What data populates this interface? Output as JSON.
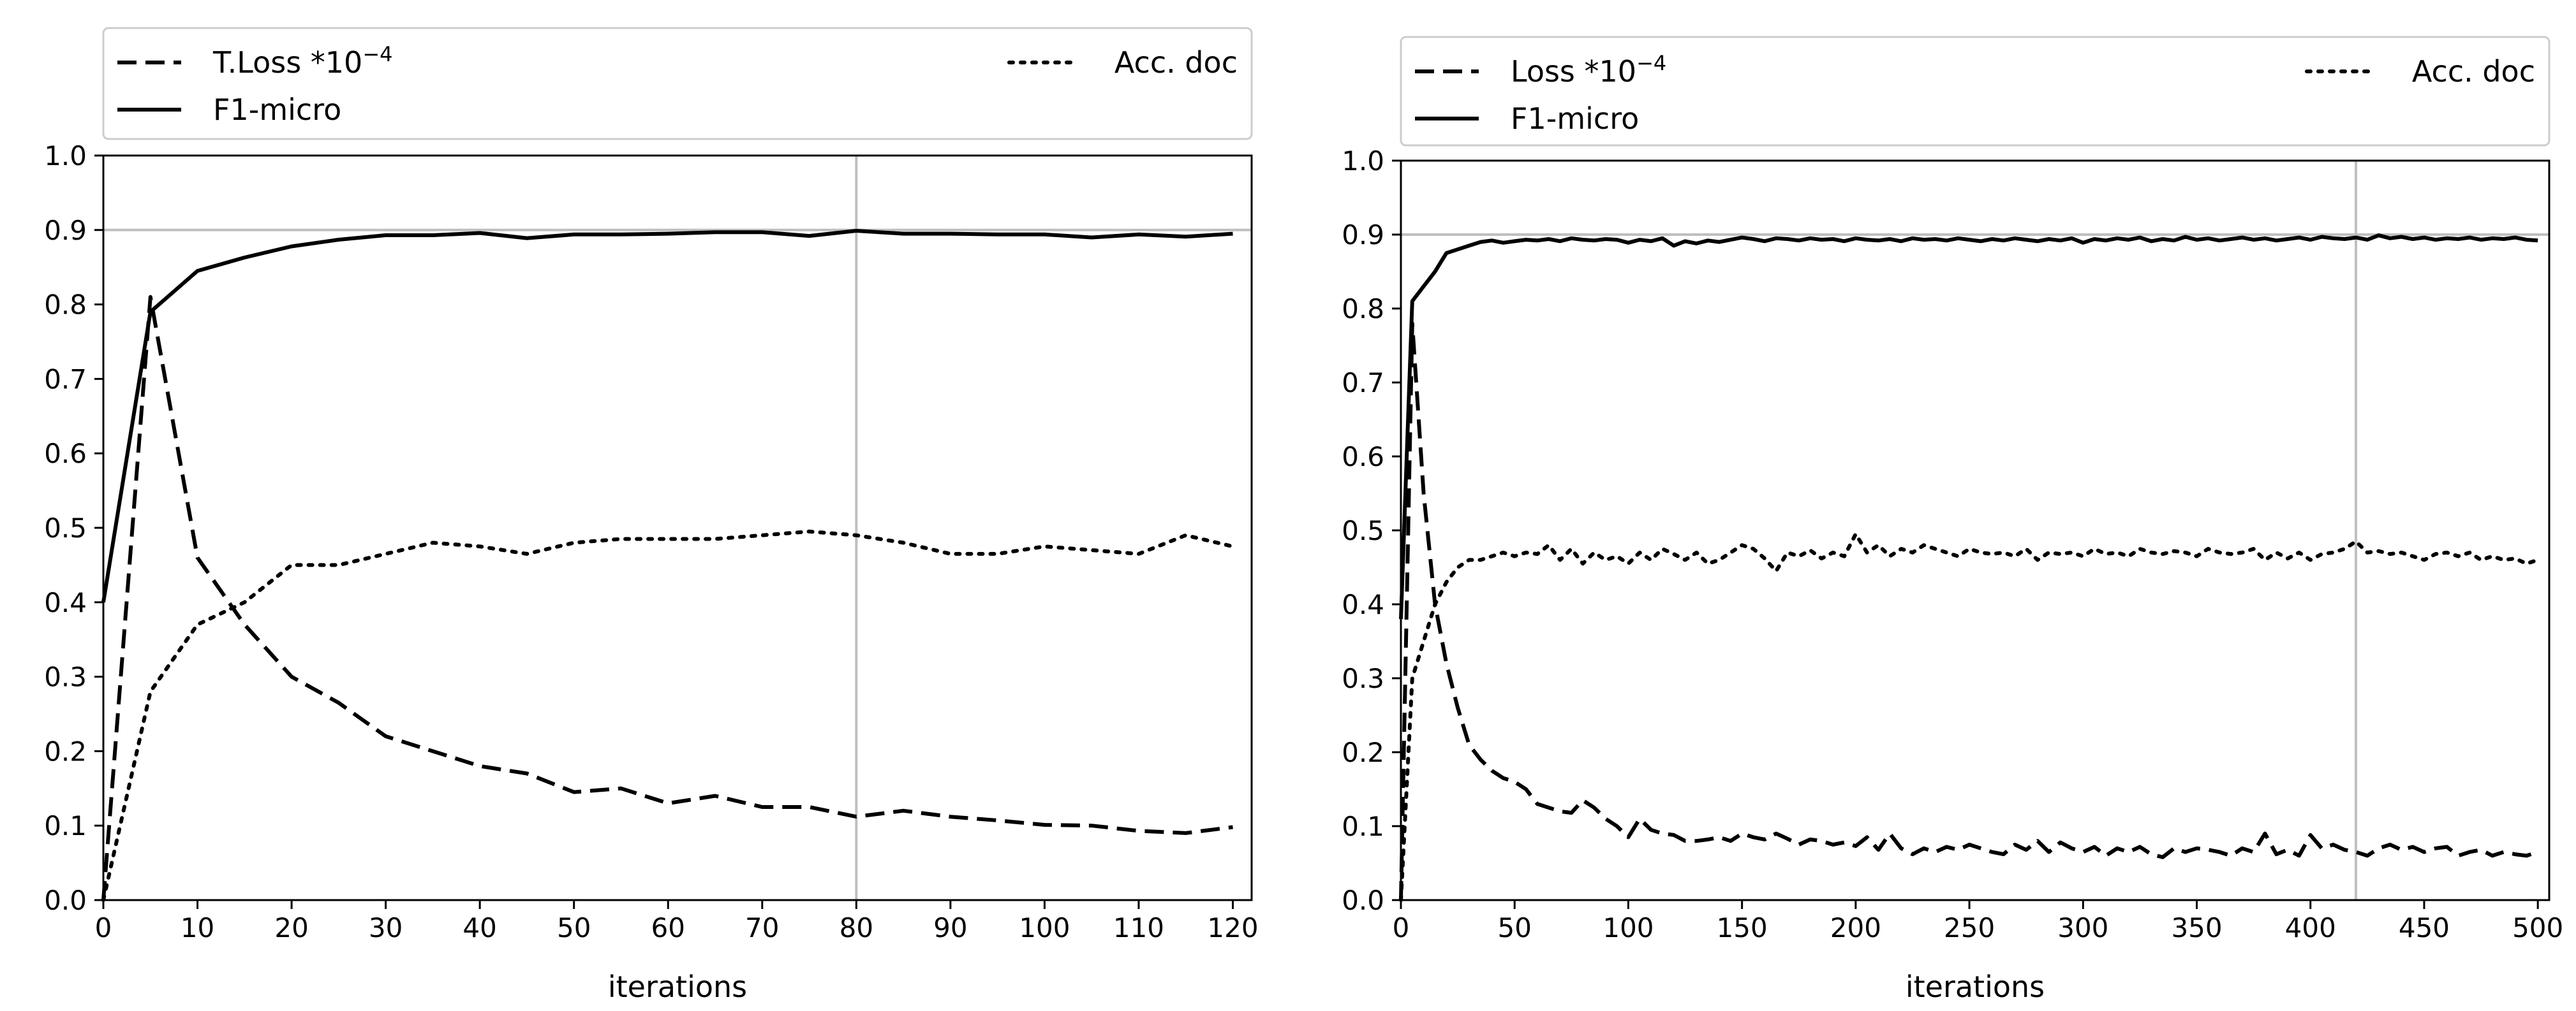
{
  "chart_data": [
    {
      "type": "line",
      "title": "",
      "xlabel": "iterations",
      "ylabel": "",
      "xlim": [
        0,
        122
      ],
      "ylim": [
        0.0,
        1.0
      ],
      "xticks": [
        0,
        10,
        20,
        30,
        40,
        50,
        60,
        70,
        80,
        90,
        100,
        110,
        120
      ],
      "xtick_labels": [
        "0",
        "10",
        "20",
        "30",
        "40",
        "50",
        "60",
        "70",
        "80",
        "90",
        "100",
        "110",
        "120"
      ],
      "yticks": [
        0.0,
        0.1,
        0.2,
        0.3,
        0.4,
        0.5,
        0.6,
        0.7,
        0.8,
        0.9,
        1.0
      ],
      "ytick_labels": [
        "0.0",
        "0.1",
        "0.2",
        "0.3",
        "0.4",
        "0.5",
        "0.6",
        "0.7",
        "0.8",
        "0.9",
        "1.0"
      ],
      "reference_lines": {
        "horizontal": 0.9,
        "vertical": 80
      },
      "legend": {
        "placement": "above",
        "entries": [
          "T.Loss *10",
          "F1-micro",
          "Acc. doc"
        ],
        "loss_exponent": "−4"
      },
      "series": [
        {
          "name": "T.Loss *10",
          "style": "dashed",
          "x": [
            0,
            5,
            10,
            15,
            20,
            25,
            30,
            35,
            40,
            45,
            50,
            55,
            60,
            65,
            70,
            75,
            80,
            85,
            90,
            95,
            100,
            105,
            110,
            115,
            120
          ],
          "y": [
            0.0,
            0.81,
            0.46,
            0.37,
            0.3,
            0.265,
            0.22,
            0.2,
            0.18,
            0.17,
            0.145,
            0.15,
            0.13,
            0.14,
            0.125,
            0.125,
            0.112,
            0.12,
            0.112,
            0.107,
            0.101,
            0.1,
            0.093,
            0.09,
            0.098
          ]
        },
        {
          "name": "F1-micro",
          "style": "solid",
          "x": [
            0,
            5,
            10,
            15,
            20,
            25,
            30,
            35,
            40,
            45,
            50,
            55,
            60,
            65,
            70,
            75,
            80,
            85,
            90,
            95,
            100,
            105,
            110,
            115,
            120
          ],
          "y": [
            0.4,
            0.79,
            0.845,
            0.863,
            0.878,
            0.887,
            0.893,
            0.893,
            0.896,
            0.889,
            0.894,
            0.894,
            0.895,
            0.897,
            0.897,
            0.892,
            0.899,
            0.895,
            0.895,
            0.894,
            0.894,
            0.89,
            0.894,
            0.891,
            0.895
          ]
        },
        {
          "name": "Acc. doc",
          "style": "dotted",
          "x": [
            0,
            5,
            10,
            15,
            20,
            25,
            30,
            35,
            40,
            45,
            50,
            55,
            60,
            65,
            70,
            75,
            80,
            85,
            90,
            95,
            100,
            105,
            110,
            115,
            120
          ],
          "y": [
            0.0,
            0.28,
            0.37,
            0.4,
            0.45,
            0.45,
            0.465,
            0.48,
            0.475,
            0.465,
            0.48,
            0.485,
            0.485,
            0.485,
            0.49,
            0.495,
            0.49,
            0.48,
            0.465,
            0.465,
            0.475,
            0.47,
            0.465,
            0.49,
            0.475
          ]
        }
      ]
    },
    {
      "type": "line",
      "title": "",
      "xlabel": "iterations",
      "ylabel": "",
      "xlim": [
        0,
        505
      ],
      "ylim": [
        0.0,
        1.0
      ],
      "xticks": [
        0,
        50,
        100,
        150,
        200,
        250,
        300,
        350,
        400,
        450,
        500
      ],
      "xtick_labels": [
        "0",
        "50",
        "100",
        "150",
        "200",
        "250",
        "300",
        "350",
        "400",
        "450",
        "500"
      ],
      "yticks": [
        0.0,
        0.1,
        0.2,
        0.3,
        0.4,
        0.5,
        0.6,
        0.7,
        0.8,
        0.9,
        1.0
      ],
      "ytick_labels": [
        "0.0",
        "0.1",
        "0.2",
        "0.3",
        "0.4",
        "0.5",
        "0.6",
        "0.7",
        "0.8",
        "0.9",
        "1.0"
      ],
      "reference_lines": {
        "horizontal": 0.9,
        "vertical": 420
      },
      "legend": {
        "placement": "above",
        "entries": [
          "Loss *10",
          "F1-micro",
          "Acc. doc"
        ],
        "loss_exponent": "−4"
      },
      "series": [
        {
          "name": "Loss *10",
          "style": "dashed",
          "x": [
            0,
            5,
            10,
            15,
            20,
            25,
            30,
            35,
            40,
            45,
            50,
            55,
            60,
            65,
            70,
            75,
            80,
            85,
            90,
            95,
            100,
            105,
            110,
            115,
            120,
            125,
            130,
            135,
            140,
            145,
            150,
            155,
            160,
            165,
            170,
            175,
            180,
            185,
            190,
            195,
            200,
            205,
            210,
            215,
            220,
            225,
            230,
            235,
            240,
            245,
            250,
            255,
            260,
            265,
            270,
            275,
            280,
            285,
            290,
            295,
            300,
            305,
            310,
            315,
            320,
            325,
            330,
            335,
            340,
            345,
            350,
            355,
            360,
            365,
            370,
            375,
            380,
            385,
            390,
            395,
            400,
            405,
            410,
            415,
            420,
            425,
            430,
            435,
            440,
            445,
            450,
            455,
            460,
            465,
            470,
            475,
            480,
            485,
            490,
            495,
            500
          ],
          "y": [
            0.0,
            0.78,
            0.55,
            0.4,
            0.32,
            0.26,
            0.21,
            0.19,
            0.175,
            0.165,
            0.16,
            0.15,
            0.13,
            0.125,
            0.12,
            0.118,
            0.135,
            0.125,
            0.11,
            0.1,
            0.085,
            0.11,
            0.095,
            0.09,
            0.088,
            0.08,
            0.08,
            0.082,
            0.085,
            0.08,
            0.09,
            0.085,
            0.082,
            0.09,
            0.083,
            0.075,
            0.082,
            0.08,
            0.075,
            0.078,
            0.073,
            0.085,
            0.068,
            0.09,
            0.07,
            0.062,
            0.07,
            0.065,
            0.072,
            0.068,
            0.075,
            0.07,
            0.065,
            0.062,
            0.075,
            0.068,
            0.08,
            0.065,
            0.078,
            0.07,
            0.065,
            0.072,
            0.06,
            0.07,
            0.065,
            0.072,
            0.062,
            0.058,
            0.07,
            0.065,
            0.07,
            0.068,
            0.065,
            0.06,
            0.07,
            0.065,
            0.09,
            0.062,
            0.068,
            0.06,
            0.088,
            0.07,
            0.075,
            0.068,
            0.065,
            0.06,
            0.07,
            0.075,
            0.068,
            0.072,
            0.065,
            0.07,
            0.072,
            0.06,
            0.065,
            0.068,
            0.06,
            0.065,
            0.062,
            0.06,
            0.065
          ]
        },
        {
          "name": "F1-micro",
          "style": "solid",
          "x": [
            0,
            5,
            10,
            15,
            20,
            25,
            30,
            35,
            40,
            45,
            50,
            55,
            60,
            65,
            70,
            75,
            80,
            85,
            90,
            95,
            100,
            105,
            110,
            115,
            120,
            125,
            130,
            135,
            140,
            145,
            150,
            155,
            160,
            165,
            170,
            175,
            180,
            185,
            190,
            195,
            200,
            205,
            210,
            215,
            220,
            225,
            230,
            235,
            240,
            245,
            250,
            255,
            260,
            265,
            270,
            275,
            280,
            285,
            290,
            295,
            300,
            305,
            310,
            315,
            320,
            325,
            330,
            335,
            340,
            345,
            350,
            355,
            360,
            365,
            370,
            375,
            380,
            385,
            390,
            395,
            400,
            405,
            410,
            415,
            420,
            425,
            430,
            435,
            440,
            445,
            450,
            455,
            460,
            465,
            470,
            475,
            480,
            485,
            490,
            495,
            500
          ],
          "y": [
            0.38,
            0.81,
            0.83,
            0.85,
            0.875,
            0.88,
            0.885,
            0.89,
            0.892,
            0.889,
            0.891,
            0.893,
            0.892,
            0.894,
            0.891,
            0.895,
            0.893,
            0.892,
            0.894,
            0.893,
            0.889,
            0.893,
            0.891,
            0.895,
            0.885,
            0.891,
            0.888,
            0.892,
            0.89,
            0.893,
            0.896,
            0.894,
            0.891,
            0.895,
            0.894,
            0.892,
            0.895,
            0.893,
            0.894,
            0.891,
            0.895,
            0.893,
            0.892,
            0.894,
            0.891,
            0.895,
            0.893,
            0.894,
            0.892,
            0.895,
            0.893,
            0.891,
            0.894,
            0.892,
            0.895,
            0.893,
            0.891,
            0.894,
            0.892,
            0.895,
            0.889,
            0.894,
            0.892,
            0.895,
            0.893,
            0.896,
            0.891,
            0.894,
            0.892,
            0.897,
            0.893,
            0.895,
            0.892,
            0.894,
            0.896,
            0.893,
            0.895,
            0.892,
            0.894,
            0.896,
            0.893,
            0.897,
            0.895,
            0.894,
            0.896,
            0.893,
            0.899,
            0.895,
            0.897,
            0.894,
            0.896,
            0.893,
            0.895,
            0.894,
            0.896,
            0.893,
            0.895,
            0.894,
            0.896,
            0.893,
            0.892
          ]
        },
        {
          "name": "Acc. doc",
          "style": "dotted",
          "x": [
            0,
            5,
            10,
            15,
            20,
            25,
            30,
            35,
            40,
            45,
            50,
            55,
            60,
            65,
            70,
            75,
            80,
            85,
            90,
            95,
            100,
            105,
            110,
            115,
            120,
            125,
            130,
            135,
            140,
            145,
            150,
            155,
            160,
            165,
            170,
            175,
            180,
            185,
            190,
            195,
            200,
            205,
            210,
            215,
            220,
            225,
            230,
            235,
            240,
            245,
            250,
            255,
            260,
            265,
            270,
            275,
            280,
            285,
            290,
            295,
            300,
            305,
            310,
            315,
            320,
            325,
            330,
            335,
            340,
            345,
            350,
            355,
            360,
            365,
            370,
            375,
            380,
            385,
            390,
            395,
            400,
            405,
            410,
            415,
            420,
            425,
            430,
            435,
            440,
            445,
            450,
            455,
            460,
            465,
            470,
            475,
            480,
            485,
            490,
            495,
            500
          ],
          "y": [
            0.0,
            0.3,
            0.35,
            0.4,
            0.43,
            0.45,
            0.46,
            0.46,
            0.465,
            0.47,
            0.465,
            0.47,
            0.468,
            0.48,
            0.46,
            0.475,
            0.455,
            0.47,
            0.46,
            0.465,
            0.455,
            0.47,
            0.46,
            0.475,
            0.468,
            0.46,
            0.47,
            0.455,
            0.46,
            0.47,
            0.48,
            0.475,
            0.462,
            0.445,
            0.47,
            0.465,
            0.473,
            0.462,
            0.47,
            0.465,
            0.495,
            0.47,
            0.48,
            0.465,
            0.475,
            0.47,
            0.48,
            0.475,
            0.47,
            0.465,
            0.475,
            0.47,
            0.468,
            0.47,
            0.465,
            0.475,
            0.46,
            0.47,
            0.468,
            0.47,
            0.465,
            0.475,
            0.468,
            0.47,
            0.465,
            0.475,
            0.47,
            0.468,
            0.472,
            0.47,
            0.465,
            0.475,
            0.47,
            0.468,
            0.47,
            0.475,
            0.46,
            0.47,
            0.462,
            0.47,
            0.46,
            0.468,
            0.47,
            0.475,
            0.485,
            0.47,
            0.472,
            0.468,
            0.47,
            0.465,
            0.46,
            0.468,
            0.47,
            0.465,
            0.47,
            0.46,
            0.465,
            0.46,
            0.462,
            0.455,
            0.46
          ]
        }
      ]
    }
  ]
}
